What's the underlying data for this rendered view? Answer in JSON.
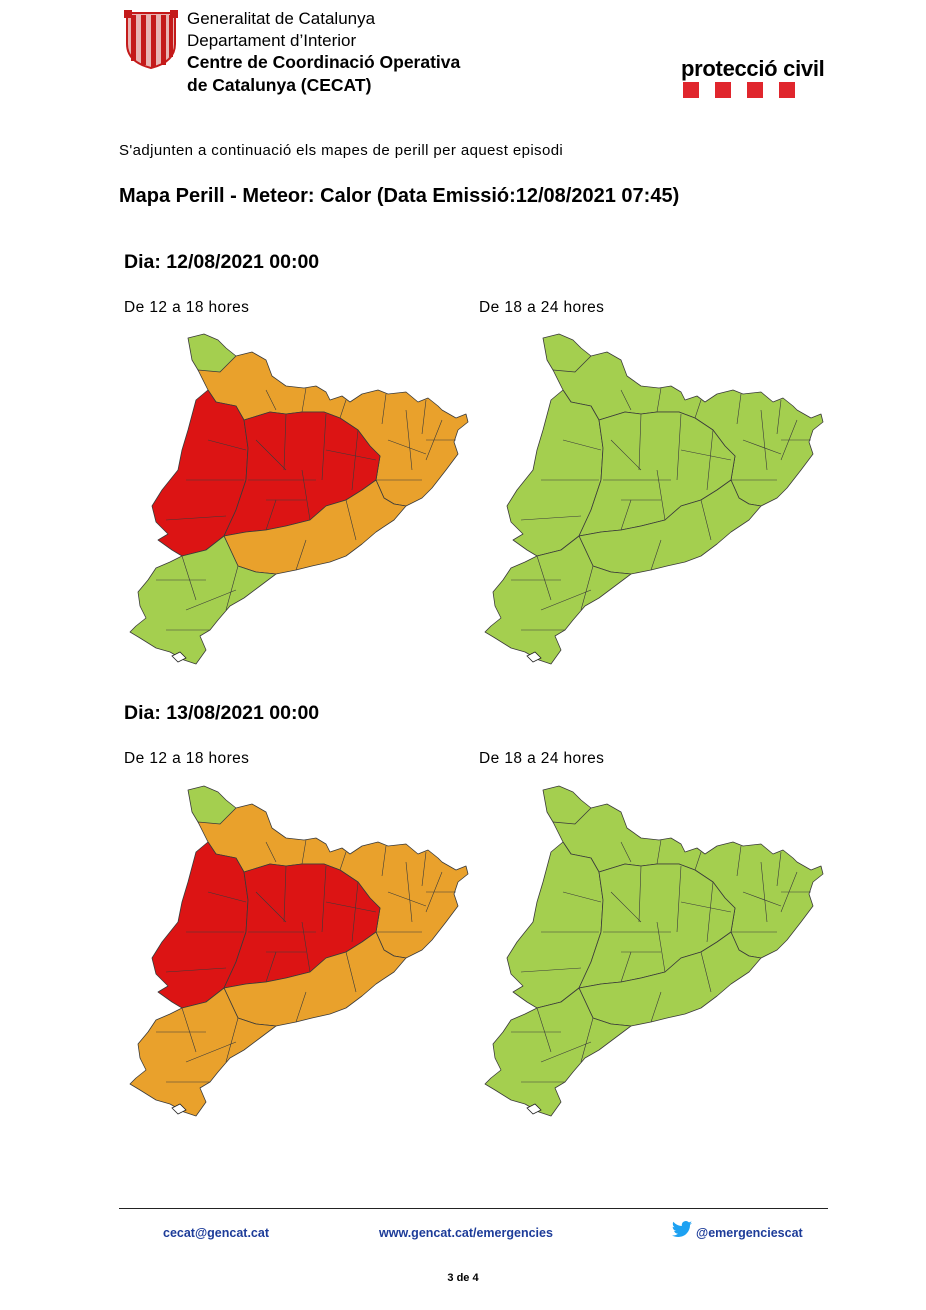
{
  "colors": {
    "green": "#a4cf4f",
    "orange": "#e9a12c",
    "red": "#dc1414",
    "brand_red": "#e0262d",
    "link_blue": "#1d3c99",
    "twitter_blue": "#1da1f2"
  },
  "header": {
    "org": [
      "Generalitat de Catalunya",
      "Departament d’Interior"
    ],
    "org_bold": [
      "Centre de Coordinació Operativa",
      "de Catalunya (CECAT)"
    ],
    "protection_logo_text": "protecció civil"
  },
  "intro": "S'adjunten a continuació els mapes de perill per aquest episodi",
  "title": "Mapa Perill - Meteor: Calor (Data Emissió:12/08/2021 07:45)",
  "days": [
    {
      "label": "Dia: 12/08/2021 00:00",
      "maps": [
        {
          "period": "De 12 a 18 hores",
          "north": "green",
          "pyrenees": "orange",
          "west": "red",
          "central": "red",
          "coast": "orange",
          "south": "green"
        },
        {
          "period": "De 18 a 24 hores",
          "north": "green",
          "pyrenees": "green",
          "west": "green",
          "central": "green",
          "coast": "green",
          "south": "green"
        }
      ]
    },
    {
      "label": "Dia: 13/08/2021 00:00",
      "maps": [
        {
          "period": "De 12 a 18 hores",
          "north": "green",
          "pyrenees": "orange",
          "west": "red",
          "central": "red",
          "coast": "orange",
          "south": "orange"
        },
        {
          "period": "De 18 a 24 hores",
          "north": "green",
          "pyrenees": "green",
          "west": "green",
          "central": "green",
          "coast": "green",
          "south": "green"
        }
      ]
    }
  ],
  "footer": {
    "email": "cecat@gencat.cat",
    "web": "www.gencat.cat/emergencies",
    "twitter": "@emergenciescat",
    "page": "3 de 4"
  }
}
